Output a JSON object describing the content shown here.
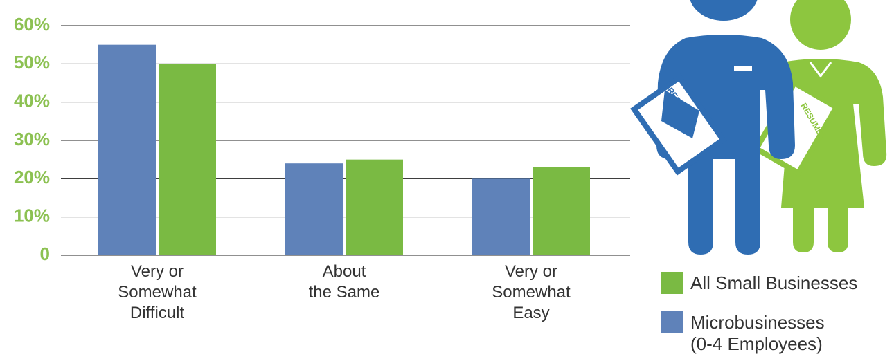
{
  "chart_data": {
    "type": "bar",
    "categories": [
      "Very or\nSomewhat\nDifficult",
      "About\nthe Same",
      "Very or\nSomewhat\nEasy"
    ],
    "series": [
      {
        "name": "Microbusinesses\n(0-4 Employees)",
        "color": "#5f82b9",
        "values": [
          55,
          24,
          20
        ]
      },
      {
        "name": "All Small Businesses",
        "color": "#7aba43",
        "values": [
          50,
          25,
          23
        ]
      }
    ],
    "ylim": [
      0,
      60
    ],
    "yticks": [
      0,
      {
        "value": 10,
        "label": "10%"
      },
      {
        "value": 20,
        "label": "20%"
      },
      {
        "value": 30,
        "label": "30%"
      },
      {
        "value": 40,
        "label": "40%"
      },
      {
        "value": 50,
        "label": "50%"
      },
      {
        "value": 60,
        "label": "60%"
      }
    ],
    "grid": true
  },
  "illustration": {
    "labels": [
      "RESUME",
      "RESUME"
    ]
  }
}
